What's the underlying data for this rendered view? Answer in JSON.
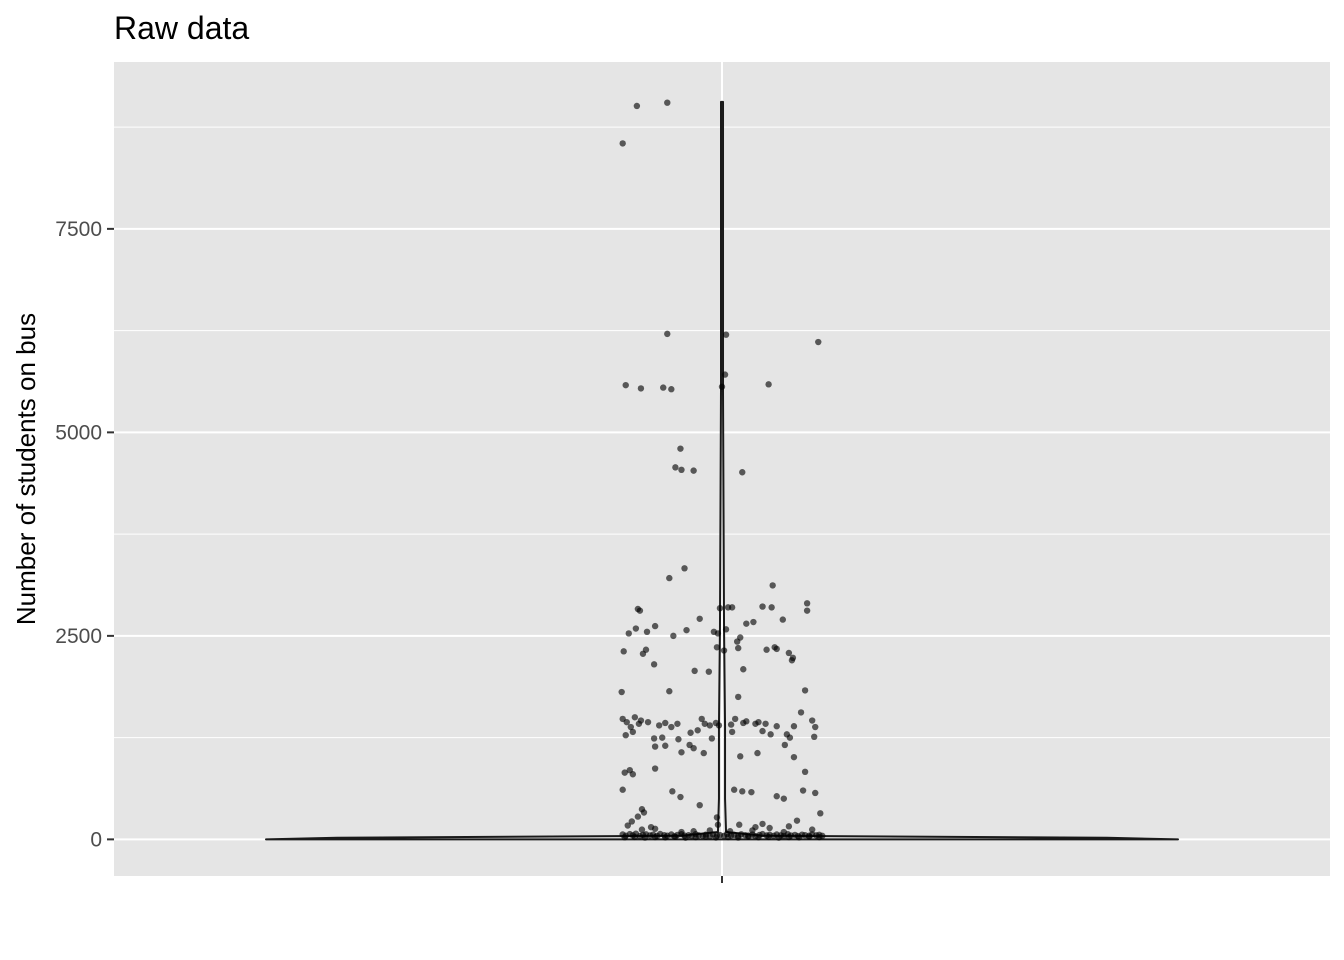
{
  "chart_data": {
    "type": "scatter",
    "title": "Raw data",
    "xlabel": "",
    "ylabel": "Number of students on bus",
    "ylim": [
      -450,
      9550
    ],
    "y_ticks": [
      0,
      2500,
      5000,
      7500
    ],
    "y_tick_labels": [
      "0",
      "2500",
      "5000",
      "7500"
    ],
    "y_minor_ticks": [
      1250,
      3750,
      6250,
      8750
    ],
    "x_range": [
      -0.6,
      0.6
    ],
    "categories": [
      ""
    ],
    "grid": true,
    "legend": "none",
    "colors": {
      "panel_background": "#e5e5e5",
      "grid": "#ffffff",
      "points": "#000000",
      "violin": "#1a1a1a",
      "tick_text": "#4d4d4d"
    },
    "violin": {
      "y_min": 0,
      "y_max": 9060,
      "max_half_width": 0.45,
      "profile": [
        {
          "y": 0,
          "w": 0.45
        },
        {
          "y": 20,
          "w": 0.38
        },
        {
          "y": 45,
          "w": 0.04
        },
        {
          "y": 90,
          "w": 0.004
        },
        {
          "y": 500,
          "w": 0.003
        },
        {
          "y": 1400,
          "w": 0.003
        },
        {
          "y": 2600,
          "w": 0.002
        },
        {
          "y": 5500,
          "w": 0.001
        },
        {
          "y": 9060,
          "w": 0.001
        }
      ]
    },
    "points": [
      {
        "x": -0.098,
        "y": 8550
      },
      {
        "x": -0.084,
        "y": 9010
      },
      {
        "x": -0.054,
        "y": 9050
      },
      {
        "x": -0.054,
        "y": 6210
      },
      {
        "x": 0.004,
        "y": 6200
      },
      {
        "x": 0.095,
        "y": 6110
      },
      {
        "x": -0.095,
        "y": 5580
      },
      {
        "x": -0.08,
        "y": 5540
      },
      {
        "x": -0.058,
        "y": 5550
      },
      {
        "x": -0.05,
        "y": 5530
      },
      {
        "x": 0.0,
        "y": 5560
      },
      {
        "x": 0.003,
        "y": 5710
      },
      {
        "x": 0.046,
        "y": 5590
      },
      {
        "x": -0.041,
        "y": 4800
      },
      {
        "x": -0.046,
        "y": 4570
      },
      {
        "x": -0.04,
        "y": 4540
      },
      {
        "x": -0.028,
        "y": 4530
      },
      {
        "x": 0.02,
        "y": 4510
      },
      {
        "x": -0.052,
        "y": 3210
      },
      {
        "x": -0.037,
        "y": 3330
      },
      {
        "x": 0.05,
        "y": 3120
      },
      {
        "x": -0.083,
        "y": 2830
      },
      {
        "x": -0.081,
        "y": 2810
      },
      {
        "x": -0.002,
        "y": 2840
      },
      {
        "x": 0.006,
        "y": 2850
      },
      {
        "x": 0.01,
        "y": 2850
      },
      {
        "x": 0.04,
        "y": 2860
      },
      {
        "x": 0.049,
        "y": 2850
      },
      {
        "x": 0.084,
        "y": 2900
      },
      {
        "x": 0.084,
        "y": 2810
      },
      {
        "x": -0.092,
        "y": 2530
      },
      {
        "x": -0.085,
        "y": 2590
      },
      {
        "x": -0.074,
        "y": 2550
      },
      {
        "x": -0.066,
        "y": 2620
      },
      {
        "x": -0.048,
        "y": 2500
      },
      {
        "x": -0.035,
        "y": 2570
      },
      {
        "x": -0.022,
        "y": 2710
      },
      {
        "x": -0.008,
        "y": 2550
      },
      {
        "x": -0.004,
        "y": 2530
      },
      {
        "x": 0.004,
        "y": 2580
      },
      {
        "x": 0.018,
        "y": 2480
      },
      {
        "x": 0.024,
        "y": 2650
      },
      {
        "x": 0.031,
        "y": 2670
      },
      {
        "x": 0.06,
        "y": 2700
      },
      {
        "x": -0.097,
        "y": 2310
      },
      {
        "x": -0.075,
        "y": 2330
      },
      {
        "x": -0.078,
        "y": 2280
      },
      {
        "x": -0.067,
        "y": 2150
      },
      {
        "x": -0.005,
        "y": 2360
      },
      {
        "x": 0.002,
        "y": 2320
      },
      {
        "x": 0.015,
        "y": 2430
      },
      {
        "x": 0.016,
        "y": 2350
      },
      {
        "x": 0.044,
        "y": 2330
      },
      {
        "x": 0.052,
        "y": 2360
      },
      {
        "x": 0.054,
        "y": 2340
      },
      {
        "x": 0.066,
        "y": 2290
      },
      {
        "x": 0.07,
        "y": 2230
      },
      {
        "x": 0.069,
        "y": 2200
      },
      {
        "x": -0.027,
        "y": 2070
      },
      {
        "x": -0.013,
        "y": 2060
      },
      {
        "x": 0.021,
        "y": 2090
      },
      {
        "x": -0.099,
        "y": 1810
      },
      {
        "x": -0.052,
        "y": 1820
      },
      {
        "x": 0.016,
        "y": 1750
      },
      {
        "x": 0.082,
        "y": 1830
      },
      {
        "x": -0.098,
        "y": 1480
      },
      {
        "x": -0.094,
        "y": 1440
      },
      {
        "x": -0.09,
        "y": 1380
      },
      {
        "x": -0.086,
        "y": 1500
      },
      {
        "x": -0.082,
        "y": 1420
      },
      {
        "x": -0.08,
        "y": 1460
      },
      {
        "x": -0.073,
        "y": 1440
      },
      {
        "x": -0.062,
        "y": 1400
      },
      {
        "x": -0.056,
        "y": 1430
      },
      {
        "x": -0.05,
        "y": 1380
      },
      {
        "x": -0.044,
        "y": 1420
      },
      {
        "x": -0.02,
        "y": 1480
      },
      {
        "x": -0.017,
        "y": 1420
      },
      {
        "x": -0.012,
        "y": 1400
      },
      {
        "x": -0.006,
        "y": 1430
      },
      {
        "x": -0.003,
        "y": 1400
      },
      {
        "x": 0.009,
        "y": 1410
      },
      {
        "x": 0.013,
        "y": 1480
      },
      {
        "x": 0.021,
        "y": 1430
      },
      {
        "x": 0.024,
        "y": 1450
      },
      {
        "x": 0.033,
        "y": 1420
      },
      {
        "x": 0.036,
        "y": 1440
      },
      {
        "x": 0.043,
        "y": 1420
      },
      {
        "x": 0.054,
        "y": 1390
      },
      {
        "x": 0.071,
        "y": 1390
      },
      {
        "x": 0.078,
        "y": 1560
      },
      {
        "x": 0.089,
        "y": 1460
      },
      {
        "x": 0.092,
        "y": 1380
      },
      {
        "x": -0.095,
        "y": 1280
      },
      {
        "x": -0.088,
        "y": 1320
      },
      {
        "x": -0.067,
        "y": 1240
      },
      {
        "x": -0.059,
        "y": 1250
      },
      {
        "x": -0.043,
        "y": 1230
      },
      {
        "x": -0.031,
        "y": 1310
      },
      {
        "x": -0.024,
        "y": 1340
      },
      {
        "x": -0.01,
        "y": 1240
      },
      {
        "x": 0.01,
        "y": 1320
      },
      {
        "x": 0.04,
        "y": 1330
      },
      {
        "x": 0.048,
        "y": 1290
      },
      {
        "x": 0.064,
        "y": 1290
      },
      {
        "x": 0.067,
        "y": 1250
      },
      {
        "x": 0.091,
        "y": 1260
      },
      {
        "x": -0.066,
        "y": 1140
      },
      {
        "x": -0.056,
        "y": 1150
      },
      {
        "x": -0.04,
        "y": 1070
      },
      {
        "x": -0.032,
        "y": 1160
      },
      {
        "x": -0.028,
        "y": 1120
      },
      {
        "x": -0.018,
        "y": 1060
      },
      {
        "x": 0.018,
        "y": 1020
      },
      {
        "x": 0.035,
        "y": 1060
      },
      {
        "x": 0.062,
        "y": 1160
      },
      {
        "x": 0.071,
        "y": 1010
      },
      {
        "x": -0.096,
        "y": 820
      },
      {
        "x": -0.091,
        "y": 850
      },
      {
        "x": -0.088,
        "y": 800
      },
      {
        "x": -0.066,
        "y": 870
      },
      {
        "x": 0.082,
        "y": 830
      },
      {
        "x": -0.098,
        "y": 610
      },
      {
        "x": -0.049,
        "y": 590
      },
      {
        "x": -0.041,
        "y": 520
      },
      {
        "x": -0.022,
        "y": 420
      },
      {
        "x": 0.012,
        "y": 610
      },
      {
        "x": 0.02,
        "y": 590
      },
      {
        "x": 0.029,
        "y": 580
      },
      {
        "x": 0.054,
        "y": 530
      },
      {
        "x": 0.061,
        "y": 500
      },
      {
        "x": 0.08,
        "y": 600
      },
      {
        "x": 0.092,
        "y": 570
      },
      {
        "x": 0.097,
        "y": 320
      },
      {
        "x": -0.079,
        "y": 370
      },
      {
        "x": -0.077,
        "y": 330
      },
      {
        "x": -0.083,
        "y": 280
      },
      {
        "x": -0.089,
        "y": 220
      },
      {
        "x": -0.093,
        "y": 170
      },
      {
        "x": -0.07,
        "y": 150
      },
      {
        "x": -0.079,
        "y": 120
      },
      {
        "x": -0.066,
        "y": 130
      },
      {
        "x": -0.005,
        "y": 270
      },
      {
        "x": -0.004,
        "y": 180
      },
      {
        "x": 0.017,
        "y": 180
      },
      {
        "x": 0.033,
        "y": 150
      },
      {
        "x": 0.04,
        "y": 190
      },
      {
        "x": 0.047,
        "y": 140
      },
      {
        "x": 0.066,
        "y": 160
      },
      {
        "x": 0.074,
        "y": 230
      },
      {
        "x": 0.089,
        "y": 120
      },
      {
        "x": -0.04,
        "y": 90
      },
      {
        "x": -0.028,
        "y": 100
      },
      {
        "x": -0.012,
        "y": 110
      },
      {
        "x": 0.008,
        "y": 100
      },
      {
        "x": 0.03,
        "y": 110
      },
      {
        "x": 0.061,
        "y": 90
      },
      {
        "x": -0.098,
        "y": 60
      },
      {
        "x": -0.095,
        "y": 45
      },
      {
        "x": -0.091,
        "y": 65
      },
      {
        "x": -0.088,
        "y": 50
      },
      {
        "x": -0.085,
        "y": 70
      },
      {
        "x": -0.081,
        "y": 40
      },
      {
        "x": -0.078,
        "y": 55
      },
      {
        "x": -0.075,
        "y": 62
      },
      {
        "x": -0.071,
        "y": 48
      },
      {
        "x": -0.068,
        "y": 58
      },
      {
        "x": -0.064,
        "y": 42
      },
      {
        "x": -0.061,
        "y": 66
      },
      {
        "x": -0.057,
        "y": 52
      },
      {
        "x": -0.054,
        "y": 45
      },
      {
        "x": -0.05,
        "y": 60
      },
      {
        "x": -0.047,
        "y": 38
      },
      {
        "x": -0.044,
        "y": 55
      },
      {
        "x": -0.04,
        "y": 64
      },
      {
        "x": -0.037,
        "y": 47
      },
      {
        "x": -0.033,
        "y": 52
      },
      {
        "x": -0.03,
        "y": 41
      },
      {
        "x": -0.026,
        "y": 63
      },
      {
        "x": -0.023,
        "y": 50
      },
      {
        "x": -0.019,
        "y": 44
      },
      {
        "x": -0.016,
        "y": 58
      },
      {
        "x": -0.012,
        "y": 39
      },
      {
        "x": -0.009,
        "y": 61
      },
      {
        "x": -0.005,
        "y": 47
      },
      {
        "x": -0.002,
        "y": 53
      },
      {
        "x": 0.002,
        "y": 42
      },
      {
        "x": 0.005,
        "y": 66
      },
      {
        "x": 0.009,
        "y": 49
      },
      {
        "x": 0.012,
        "y": 56
      },
      {
        "x": 0.016,
        "y": 43
      },
      {
        "x": 0.019,
        "y": 62
      },
      {
        "x": 0.023,
        "y": 51
      },
      {
        "x": 0.026,
        "y": 46
      },
      {
        "x": 0.03,
        "y": 59
      },
      {
        "x": 0.033,
        "y": 40
      },
      {
        "x": 0.037,
        "y": 54
      },
      {
        "x": 0.04,
        "y": 65
      },
      {
        "x": 0.044,
        "y": 48
      },
      {
        "x": 0.047,
        "y": 57
      },
      {
        "x": 0.051,
        "y": 44
      },
      {
        "x": 0.054,
        "y": 60
      },
      {
        "x": 0.058,
        "y": 50
      },
      {
        "x": 0.061,
        "y": 42
      },
      {
        "x": 0.065,
        "y": 63
      },
      {
        "x": 0.068,
        "y": 47
      },
      {
        "x": 0.072,
        "y": 55
      },
      {
        "x": 0.075,
        "y": 41
      },
      {
        "x": 0.079,
        "y": 58
      },
      {
        "x": 0.082,
        "y": 52
      },
      {
        "x": 0.086,
        "y": 45
      },
      {
        "x": 0.089,
        "y": 61
      },
      {
        "x": 0.093,
        "y": 49
      },
      {
        "x": 0.096,
        "y": 56
      },
      {
        "x": 0.099,
        "y": 43
      },
      {
        "x": -0.096,
        "y": 25
      },
      {
        "x": -0.086,
        "y": 30
      },
      {
        "x": -0.076,
        "y": 22
      },
      {
        "x": -0.066,
        "y": 28
      },
      {
        "x": -0.056,
        "y": 24
      },
      {
        "x": -0.046,
        "y": 31
      },
      {
        "x": -0.036,
        "y": 21
      },
      {
        "x": -0.026,
        "y": 27
      },
      {
        "x": -0.016,
        "y": 33
      },
      {
        "x": -0.006,
        "y": 23
      },
      {
        "x": 0.006,
        "y": 29
      },
      {
        "x": 0.016,
        "y": 22
      },
      {
        "x": 0.026,
        "y": 32
      },
      {
        "x": 0.036,
        "y": 26
      },
      {
        "x": 0.046,
        "y": 30
      },
      {
        "x": 0.056,
        "y": 21
      },
      {
        "x": 0.066,
        "y": 28
      },
      {
        "x": 0.076,
        "y": 24
      },
      {
        "x": 0.086,
        "y": 33
      },
      {
        "x": 0.096,
        "y": 27
      }
    ]
  }
}
